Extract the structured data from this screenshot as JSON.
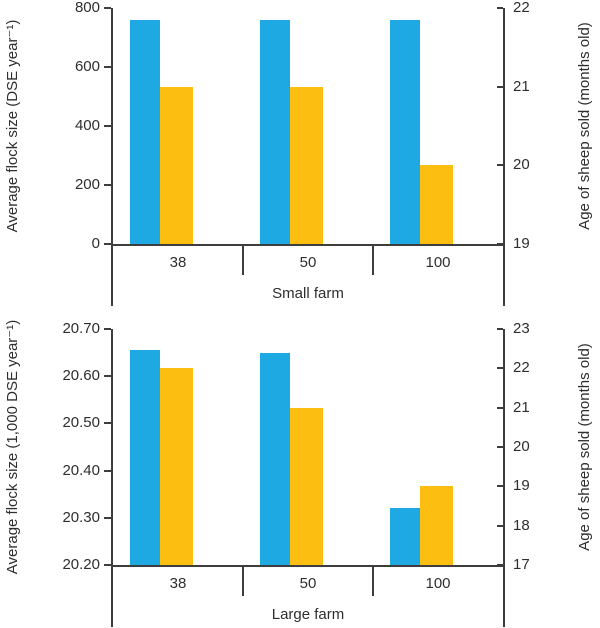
{
  "page": {
    "background": "#ffffff"
  },
  "colors": {
    "flock_series": "#1fa9e2",
    "age_series": "#fcbe11",
    "axis_line": "#3d3d3d",
    "text": "#2e2e2e"
  },
  "chart_data": [
    {
      "type": "bar",
      "group_label": "Small farm",
      "categories": [
        "38",
        "50",
        "100"
      ],
      "grid": false,
      "legend": "none",
      "left_axis": {
        "label": "Average flock size (DSE year⁻¹)",
        "min": 0,
        "max": 800,
        "ticks": [
          "800",
          "600",
          "400",
          "200",
          "0"
        ]
      },
      "right_axis": {
        "label": "Age of sheep sold (months old)",
        "min": 19,
        "max": 22,
        "ticks": [
          "22",
          "21",
          "20",
          "19"
        ]
      },
      "series": [
        {
          "id": "flock-size",
          "axis": "left",
          "color_key": "flock_series",
          "values": [
            760,
            760,
            760
          ]
        },
        {
          "id": "age-sold",
          "axis": "right",
          "color_key": "age_series",
          "values": [
            21,
            21,
            20
          ]
        }
      ]
    },
    {
      "type": "bar",
      "group_label": "Large farm",
      "categories": [
        "38",
        "50",
        "100"
      ],
      "grid": false,
      "legend": "none",
      "left_axis": {
        "label": "Average flock size (1,000 DSE year⁻¹)",
        "min": 20.2,
        "max": 20.7,
        "ticks": [
          "20.70",
          "20.60",
          "20.50",
          "20.40",
          "20.30",
          "20.20"
        ]
      },
      "right_axis": {
        "label": "Age of sheep sold (months old)",
        "min": 17,
        "max": 23,
        "ticks": [
          "23",
          "22",
          "21",
          "20",
          "19",
          "18",
          "17"
        ]
      },
      "series": [
        {
          "id": "flock-size",
          "axis": "left",
          "color_key": "flock_series",
          "values": [
            20.655,
            20.65,
            20.32
          ]
        },
        {
          "id": "age-sold",
          "axis": "right",
          "color_key": "age_series",
          "values": [
            22,
            21,
            19
          ]
        }
      ]
    }
  ]
}
